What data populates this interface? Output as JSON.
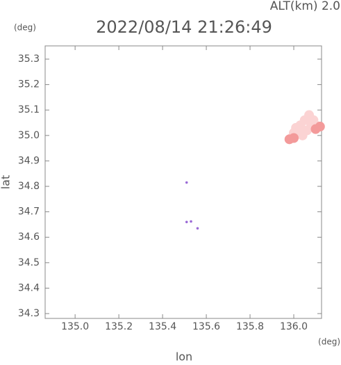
{
  "chart_data": {
    "type": "scatter",
    "title": "2022/08/14 21:26:49",
    "subtitle": "ALT(km) 2.0",
    "y_unit": "(deg)",
    "x_unit": "(deg)",
    "xlabel": "lon",
    "ylabel": "lat",
    "xlim": [
      134.863,
      136.127
    ],
    "ylim": [
      34.281,
      35.352
    ],
    "xticks": [
      {
        "value": 135.0,
        "label": "135.0"
      },
      135.2,
      135.4,
      135.6,
      135.8,
      {
        "value": 136.0,
        "label": "136.0"
      }
    ],
    "yticks": [
      34.3,
      34.4,
      34.5,
      34.6,
      34.7,
      34.8,
      34.9,
      {
        "value": 35.0,
        "label": "35.0"
      },
      35.1,
      35.2,
      35.3
    ],
    "series": [
      {
        "color": "#fbd3d3",
        "x": [
          136.07,
          136.09,
          136.05,
          136.08,
          136.1,
          136.03,
          136.06,
          136.01,
          136.04,
          136.0,
          135.99,
          136.03
        ],
        "y": [
          35.08,
          35.06,
          35.06,
          35.04,
          35.04,
          35.04,
          35.02,
          35.03,
          35.0,
          35.01,
          34.99,
          35.02
        ]
      },
      {
        "color": "#f39a9a",
        "x": [
          136.12,
          136.1,
          136.0,
          135.98
        ],
        "y": [
          35.035,
          35.025,
          34.99,
          34.985
        ]
      },
      {
        "color": "#9b6bd6",
        "x": [
          135.51,
          135.51,
          135.53,
          135.56
        ],
        "y": [
          34.815,
          34.66,
          34.662,
          34.635
        ]
      }
    ]
  }
}
